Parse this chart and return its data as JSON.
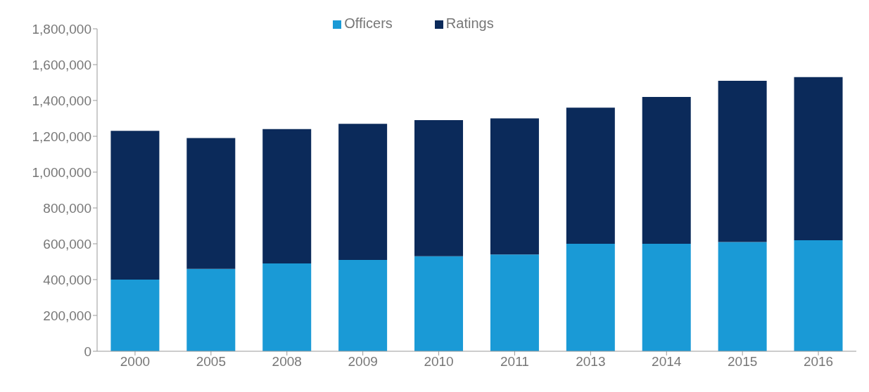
{
  "chart_data": {
    "type": "bar",
    "stacked": true,
    "categories": [
      "2000",
      "2005",
      "2008",
      "2009",
      "2010",
      "2011",
      "2013",
      "2014",
      "2015",
      "2016"
    ],
    "series": [
      {
        "name": "Officers",
        "color": "#1a9ad6",
        "values": [
          400000,
          460000,
          490000,
          510000,
          530000,
          540000,
          600000,
          600000,
          610000,
          620000
        ]
      },
      {
        "name": "Ratings",
        "color": "#0b2a5a",
        "values": [
          830000,
          730000,
          750000,
          760000,
          760000,
          760000,
          760000,
          820000,
          900000,
          910000
        ]
      }
    ],
    "ylim": [
      0,
      1800000
    ],
    "yticks": [
      0,
      {
        "value": 200000,
        "label": "200,000"
      },
      {
        "value": 400000,
        "label": "400,000"
      },
      {
        "value": 600000,
        "label": "600,000"
      },
      {
        "value": 800000,
        "label": "800,000"
      },
      {
        "value": 1000000,
        "label": "1,000,000"
      },
      {
        "value": 1200000,
        "label": "1,200,000"
      },
      {
        "value": 1400000,
        "label": "1,400,000"
      },
      {
        "value": 1600000,
        "label": "1,600,000"
      },
      {
        "value": 1800000,
        "label": "1,800,000"
      }
    ],
    "grid": false,
    "legend": "top"
  }
}
